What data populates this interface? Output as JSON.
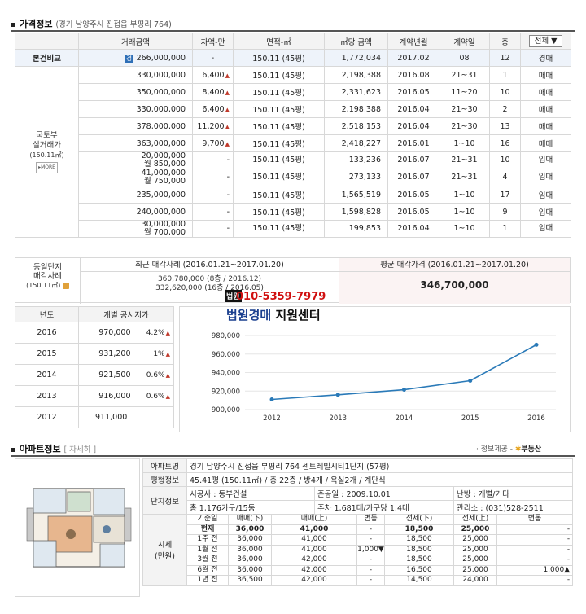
{
  "price_section": {
    "title": "가격정보",
    "address": "(경기 남양주시 진접읍 부평리 764)",
    "headers": [
      "거래금액",
      "차액-만",
      "면적-㎡",
      "㎡당 금액",
      "계약년월",
      "계약일",
      "층"
    ],
    "filter_label": "전체 ▼",
    "base_row": {
      "label": "본건비교",
      "badge": "경",
      "amount": "266,000,000",
      "diff": "-",
      "area": "150.11 (45평)",
      "per_m2": "1,772,034",
      "ym": "2017.02",
      "day": "08",
      "floor": "12",
      "type": "경매"
    },
    "group_label_1": "국토부",
    "group_label_2": "실거래가",
    "group_label_3": "(150.11㎡)",
    "more_label": "▸MORE",
    "rows": [
      {
        "amount": "330,000,000",
        "amount2": "",
        "diff": "6,400",
        "up": true,
        "area": "150.11 (45평)",
        "per_m2": "2,198,388",
        "ym": "2016.08",
        "day": "21~31",
        "floor": "1",
        "type": "매매"
      },
      {
        "amount": "350,000,000",
        "amount2": "",
        "diff": "8,400",
        "up": true,
        "area": "150.11 (45평)",
        "per_m2": "2,331,623",
        "ym": "2016.05",
        "day": "11~20",
        "floor": "10",
        "type": "매매"
      },
      {
        "amount": "330,000,000",
        "amount2": "",
        "diff": "6,400",
        "up": true,
        "area": "150.11 (45평)",
        "per_m2": "2,198,388",
        "ym": "2016.04",
        "day": "21~30",
        "floor": "2",
        "type": "매매"
      },
      {
        "amount": "378,000,000",
        "amount2": "",
        "diff": "11,200",
        "up": true,
        "area": "150.11 (45평)",
        "per_m2": "2,518,153",
        "ym": "2016.04",
        "day": "21~30",
        "floor": "13",
        "type": "매매"
      },
      {
        "amount": "363,000,000",
        "amount2": "",
        "diff": "9,700",
        "up": true,
        "area": "150.11 (45평)",
        "per_m2": "2,418,227",
        "ym": "2016.01",
        "day": "1~10",
        "floor": "16",
        "type": "매매"
      },
      {
        "amount": "20,000,000",
        "amount2": "월 850,000",
        "diff": "-",
        "up": false,
        "area": "150.11 (45평)",
        "per_m2": "133,236",
        "ym": "2016.07",
        "day": "21~31",
        "floor": "10",
        "type": "임대"
      },
      {
        "amount": "41,000,000",
        "amount2": "월 750,000",
        "diff": "-",
        "up": false,
        "area": "150.11 (45평)",
        "per_m2": "273,133",
        "ym": "2016.07",
        "day": "21~31",
        "floor": "4",
        "type": "임대"
      },
      {
        "amount": "235,000,000",
        "amount2": "",
        "diff": "-",
        "up": false,
        "area": "150.11 (45평)",
        "per_m2": "1,565,519",
        "ym": "2016.05",
        "day": "1~10",
        "floor": "17",
        "type": "임대"
      },
      {
        "amount": "240,000,000",
        "amount2": "",
        "diff": "-",
        "up": false,
        "area": "150.11 (45평)",
        "per_m2": "1,598,828",
        "ym": "2016.05",
        "day": "1~10",
        "floor": "9",
        "type": "임대"
      },
      {
        "amount": "30,000,000",
        "amount2": "월 700,000",
        "diff": "-",
        "up": false,
        "area": "150.11 (45평)",
        "per_m2": "199,853",
        "ym": "2016.04",
        "day": "1~10",
        "floor": "1",
        "type": "임대"
      }
    ]
  },
  "comparison": {
    "left_1": "동일단지",
    "left_2": "매각사례",
    "left_3": "(150.11㎡)",
    "recent_title": "최근 매각사례 (2016.01.21~2017.01.20)",
    "recent_1": "360,780,000 (8층 / 2016.12)",
    "recent_2": "332,620,000 (16층 / 2016.05)",
    "avg_title": "평균 매각가격 (2016.01.21~2017.01.20)",
    "avg_value": "346,700,000"
  },
  "watermark": {
    "tag": "법원",
    "phone": "010-5359-7979",
    "name_a": "법원경매",
    "name_b": " 지원센터"
  },
  "land_value": {
    "headers": [
      "년도",
      "개별 공시지가"
    ],
    "rows": [
      {
        "year": "2016",
        "price": "970,000",
        "pct": "4.2%"
      },
      {
        "year": "2015",
        "price": "931,200",
        "pct": "1%"
      },
      {
        "year": "2014",
        "price": "921,500",
        "pct": "0.6%"
      },
      {
        "year": "2013",
        "price": "916,000",
        "pct": "0.6%"
      },
      {
        "year": "2012",
        "price": "911,000",
        "pct": ""
      }
    ]
  },
  "chart_data": {
    "type": "line",
    "x": [
      "2012",
      "2013",
      "2014",
      "2015",
      "2016"
    ],
    "values": [
      911000,
      916000,
      921500,
      931200,
      970000
    ],
    "yticks": [
      "900,000",
      "920,000",
      "940,000",
      "960,000",
      "980,000"
    ],
    "ylim": [
      900000,
      980000
    ],
    "color": "#2a7ab8",
    "grid": true
  },
  "apt_section": {
    "title": "아파트정보",
    "detail_link": "[ 자세히 ]",
    "source_label": "· 정보제공 -",
    "source_logo": "부동산",
    "name_label": "아파트명",
    "name_value": "경기 남양주시 진접읍 부평리 764 센트레빌시티1단지 (57평)",
    "plan_label": "평형정보",
    "plan_value": "45.41평 (150.11㎡) / 총 22층 / 방4개 / 욕실2개 / 계단식",
    "complex_label": "단지정보",
    "builder": "시공사 : 동부건설",
    "completed": "준공일 : 2009.10.01",
    "heating": "난방 : 개별/기타",
    "households": "총 1,176가구/15동",
    "parking": "주차 1,681대/가구당 1.4대",
    "office": "관리소 : (031)528-2511",
    "market_label_1": "시세",
    "market_label_2": "(만원)",
    "market_headers": [
      "기준일",
      "매매(下)",
      "매매(上)",
      "변동",
      "전세(下)",
      "전세(上)",
      "변동"
    ],
    "market_rows": [
      {
        "date": "현재",
        "s_lo": "36,000",
        "s_hi": "41,000",
        "s_chg": "-",
        "j_lo": "18,500",
        "j_hi": "25,000",
        "j_chg": "-",
        "bold": true
      },
      {
        "date": "1주 전",
        "s_lo": "36,000",
        "s_hi": "41,000",
        "s_chg": "-",
        "j_lo": "18,500",
        "j_hi": "25,000",
        "j_chg": "-",
        "bold": false
      },
      {
        "date": "1월 전",
        "s_lo": "36,000",
        "s_hi": "41,000",
        "s_chg": "1,000▼",
        "j_lo": "18,500",
        "j_hi": "25,000",
        "j_chg": "-",
        "bold": false
      },
      {
        "date": "3월 전",
        "s_lo": "36,000",
        "s_hi": "42,000",
        "s_chg": "-",
        "j_lo": "18,500",
        "j_hi": "25,000",
        "j_chg": "-",
        "bold": false
      },
      {
        "date": "6월 전",
        "s_lo": "36,000",
        "s_hi": "42,000",
        "s_chg": "-",
        "j_lo": "16,500",
        "j_hi": "25,000",
        "j_chg": "1,000▲",
        "bold": false
      },
      {
        "date": "1년 전",
        "s_lo": "36,500",
        "s_hi": "42,000",
        "s_chg": "-",
        "j_lo": "14,500",
        "j_hi": "24,000",
        "j_chg": "-",
        "bold": false
      }
    ]
  }
}
